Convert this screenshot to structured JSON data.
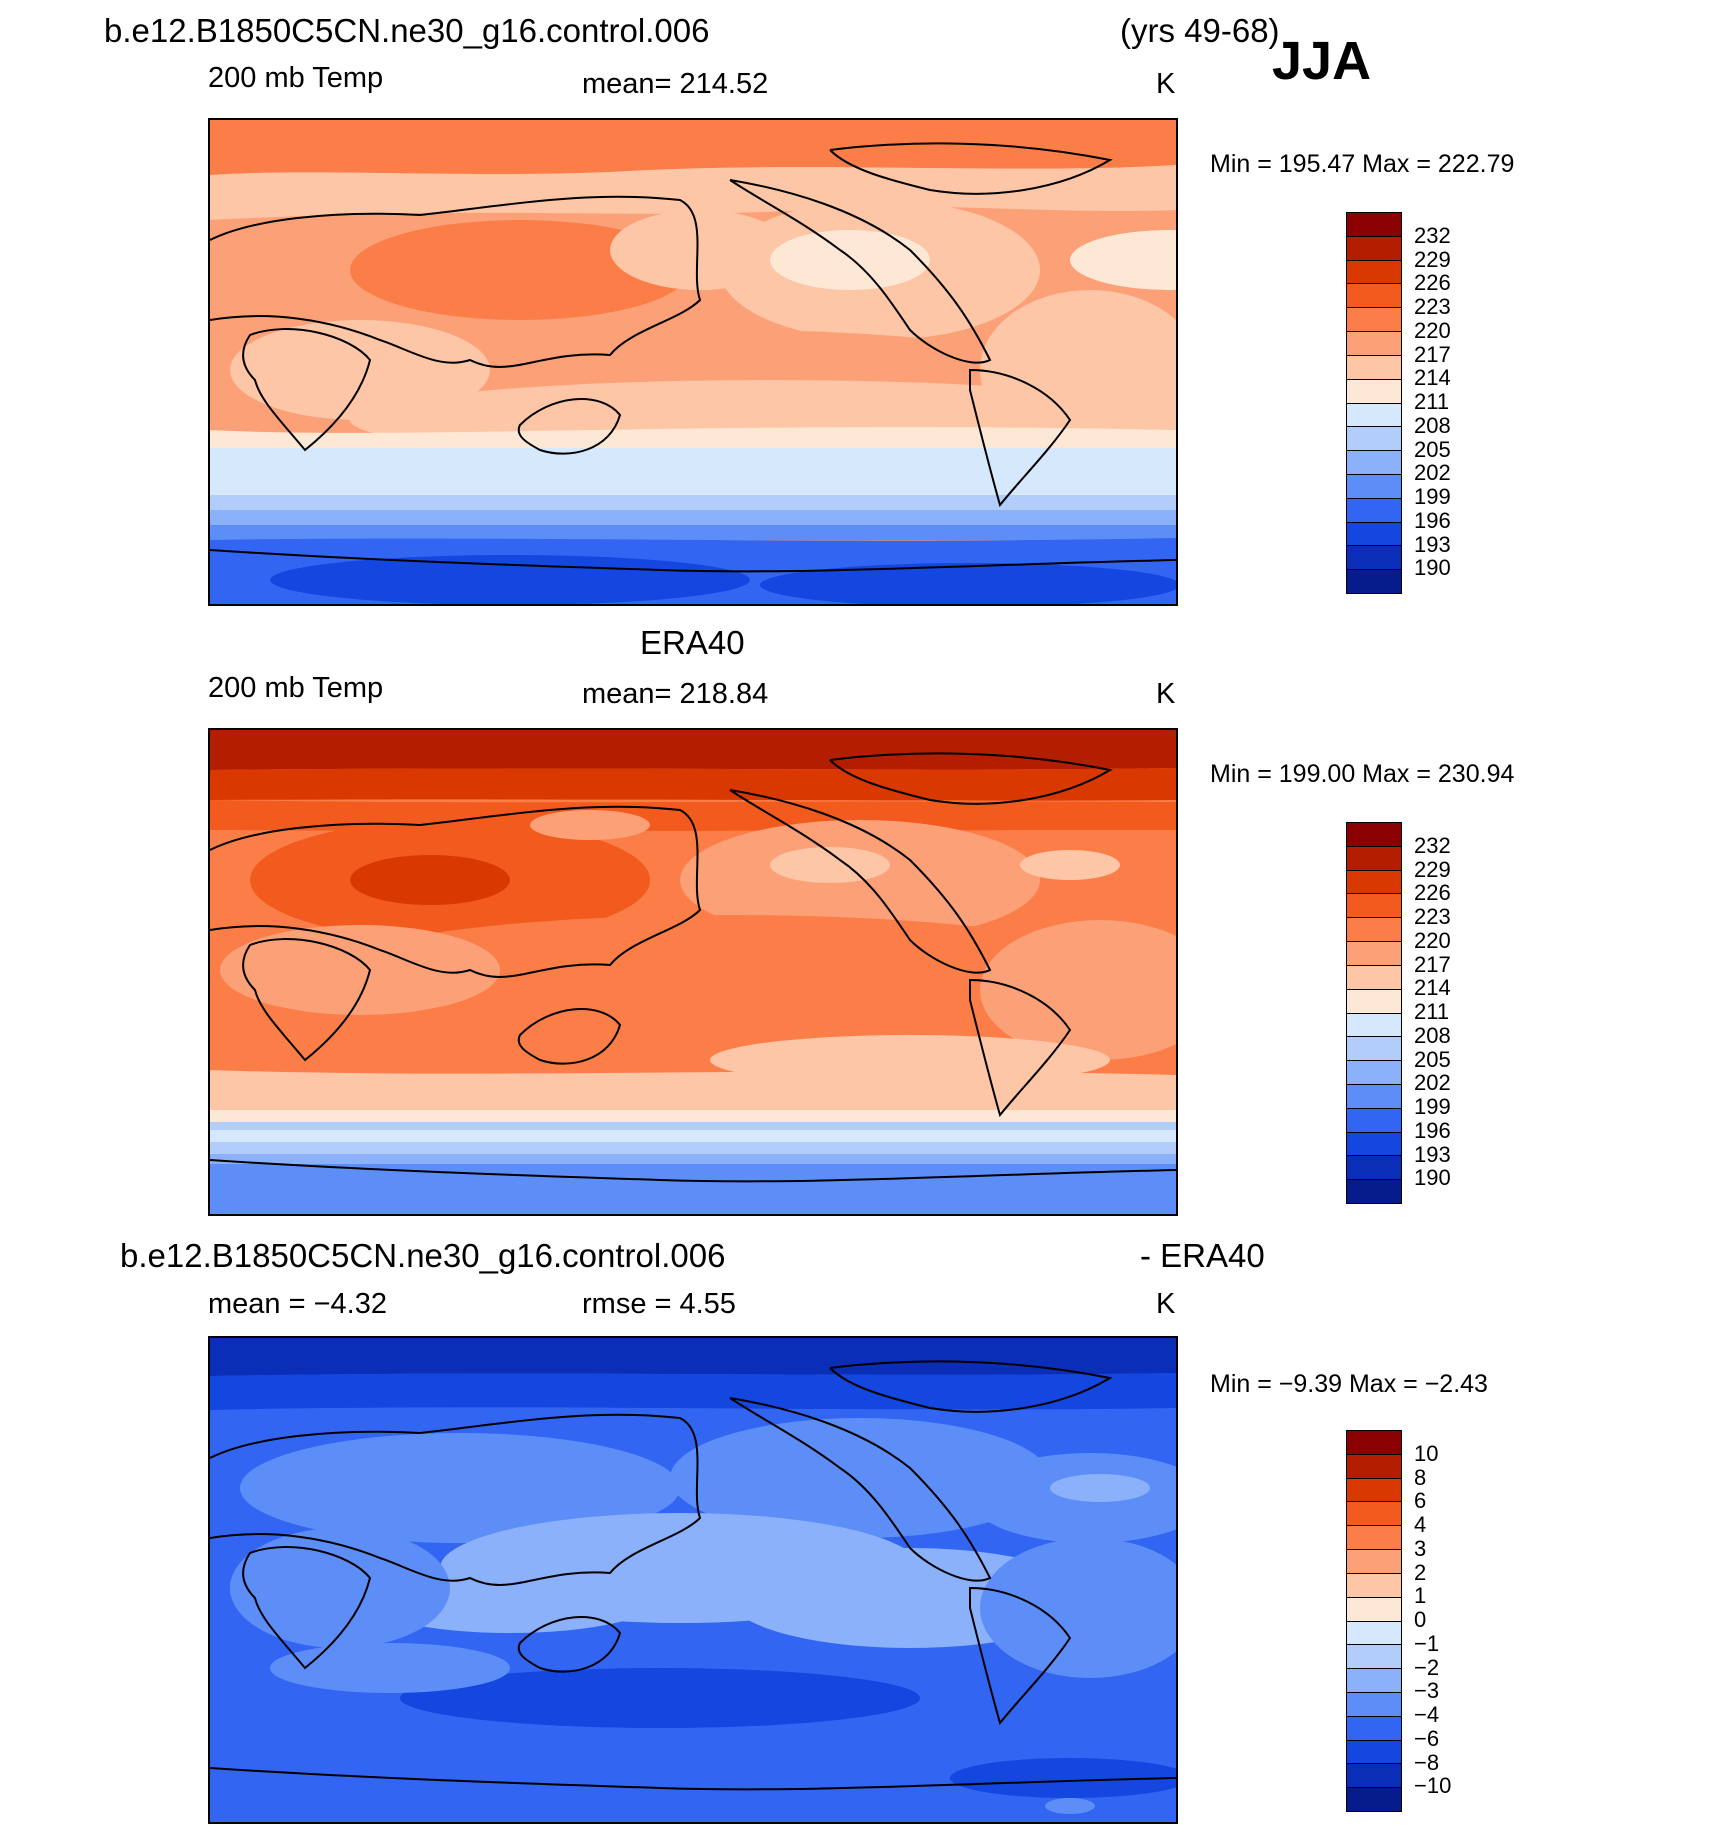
{
  "header": {
    "case_name": "b.e12.B1850C5CN.ne30_g16.control.006",
    "years": "(yrs 49-68)",
    "season": "JJA"
  },
  "panels": [
    {
      "id": "model",
      "title": "",
      "variable": "200 mb Temp",
      "stat": "mean=  214.52",
      "units": "K",
      "minmax": "Min  =  195.47  Max  =  222.79",
      "levels": [
        "232",
        "229",
        "226",
        "223",
        "220",
        "217",
        "214",
        "211",
        "208",
        "205",
        "202",
        "199",
        "196",
        "193",
        "190"
      ]
    },
    {
      "id": "obs",
      "title": "ERA40",
      "variable": "200 mb Temp",
      "stat": "mean=  218.84",
      "units": "K",
      "minmax": "Min  =  199.00  Max  =  230.94",
      "levels": [
        "232",
        "229",
        "226",
        "223",
        "220",
        "217",
        "214",
        "211",
        "208",
        "205",
        "202",
        "199",
        "196",
        "193",
        "190"
      ]
    },
    {
      "id": "diff",
      "title_left": "b.e12.B1850C5CN.ne30_g16.control.006",
      "title_right": "- ERA40",
      "stat_left": "mean  =    −4.32",
      "stat_mid": "rmse  =     4.55",
      "units": "K",
      "minmax": "Min  =   −9.39  Max  =   −2.43",
      "levels": [
        "10",
        "8",
        "6",
        "4",
        "3",
        "2",
        "1",
        "0",
        "−1",
        "−2",
        "−3",
        "−4",
        "−6",
        "−8",
        "−10"
      ]
    }
  ],
  "colorbar_colors": [
    "#8b0000",
    "#b31e00",
    "#d93800",
    "#f25a1e",
    "#fb7d48",
    "#fca078",
    "#fdc6a6",
    "#fde8d6",
    "#d6e8fb",
    "#b3cdfb",
    "#8bb1fb",
    "#5d8ef8",
    "#3266f2",
    "#1446e0",
    "#0a2eb8",
    "#061c8c"
  ],
  "chart_data": {
    "type": "heatmap",
    "maps": [
      {
        "name": "200 mb Temp",
        "units": "K",
        "mean": 214.52,
        "min": 195.47,
        "max": 222.79
      },
      {
        "name": "ERA40 200 mb Temp",
        "units": "K",
        "mean": 218.84,
        "min": 199.0,
        "max": 230.94
      },
      {
        "name": "- ERA40",
        "units": "K",
        "mean": -4.32,
        "rmse": 4.55,
        "min": -9.39,
        "max": -2.43
      }
    ],
    "temp_levels": [
      190,
      193,
      196,
      199,
      202,
      205,
      208,
      211,
      214,
      217,
      220,
      223,
      226,
      229,
      232
    ],
    "diff_levels": [
      -10,
      -8,
      -6,
      -4,
      -3,
      -2,
      -1,
      0,
      1,
      2,
      3,
      4,
      6,
      8,
      10
    ]
  }
}
